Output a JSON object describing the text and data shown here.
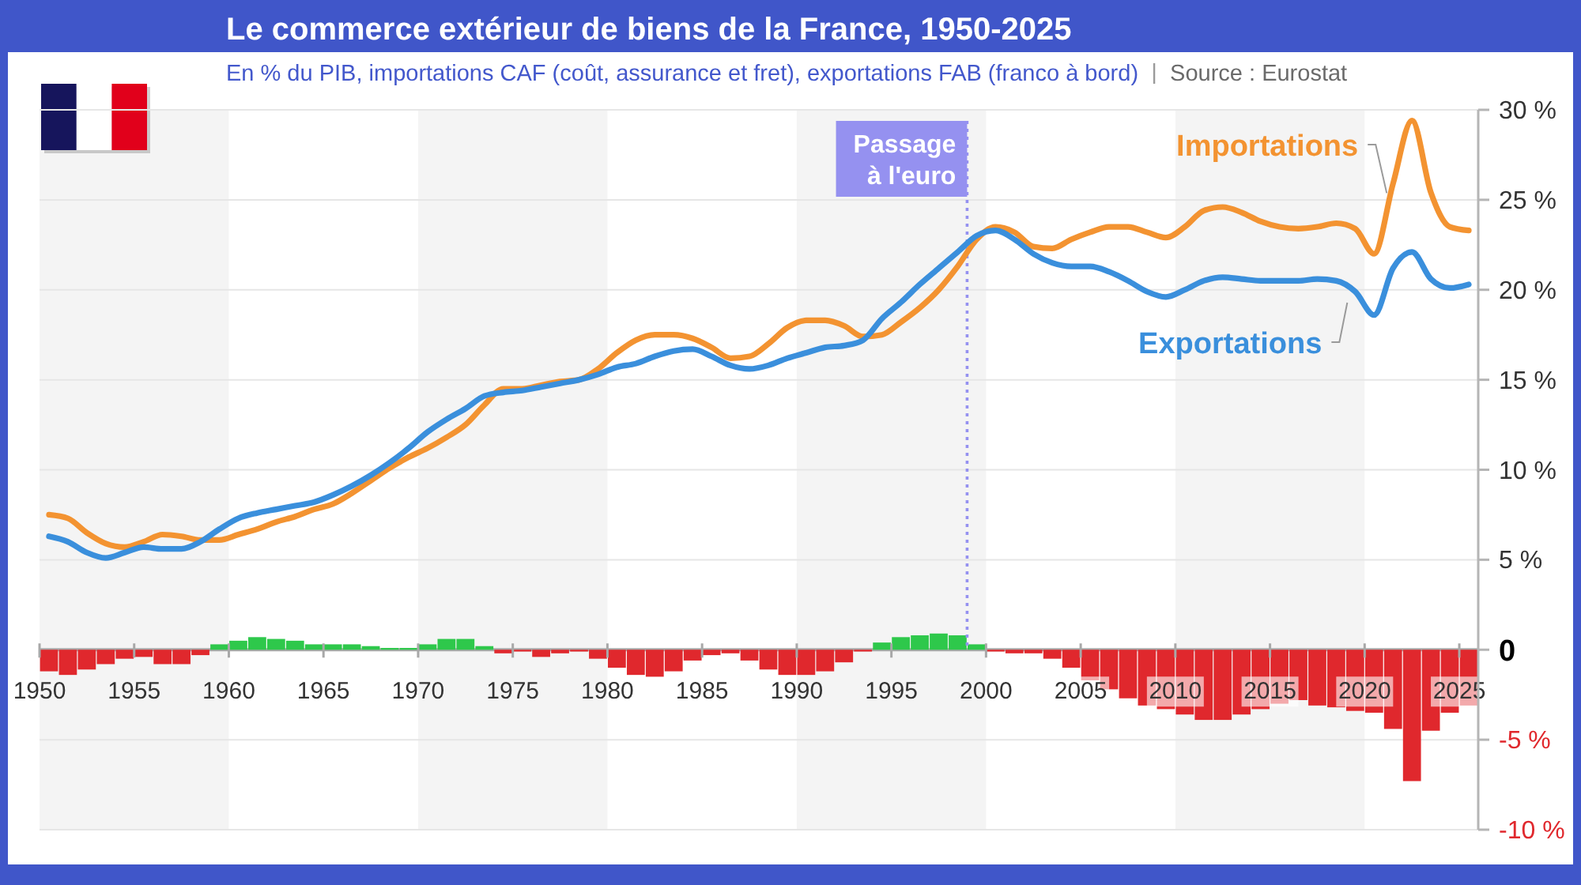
{
  "chart_data": {
    "type": "line",
    "title": "Le commerce extérieur de biens de la France, 1950-2025",
    "subtitle": "En % du PIB, importations CAF (coût, assurance et fret), exportations FAB (franco à bord)",
    "annotations": [
      "Source : Eurostat"
    ],
    "x": [
      1950.5,
      1951.5,
      1952.5,
      1953.5,
      1954.5,
      1955.5,
      1956.5,
      1957.5,
      1958.5,
      1959.5,
      1960.5,
      1961.5,
      1962.5,
      1963.5,
      1964.5,
      1965.5,
      1966.5,
      1967.5,
      1968.5,
      1969.5,
      1970.5,
      1971.5,
      1972.5,
      1973.5,
      1974.5,
      1975.5,
      1976.5,
      1977.5,
      1978.5,
      1979.5,
      1980.5,
      1981.5,
      1982.5,
      1983.5,
      1984.5,
      1985.5,
      1986.5,
      1987.5,
      1988.5,
      1989.5,
      1990.5,
      1991.5,
      1992.5,
      1993.5,
      1994.5,
      1995.5,
      1996.5,
      1997.5,
      1998.5,
      1999.5,
      2000.5,
      2001.5,
      2002.5,
      2003.5,
      2004.5,
      2005.5,
      2006.5,
      2007.5,
      2008.5,
      2009.5,
      2010.5,
      2011.5,
      2012.5,
      2013.5,
      2014.5,
      2015.5,
      2016.5,
      2017.5,
      2018.5,
      2019.5,
      2020.5,
      2021.5,
      2022.5,
      2023.5,
      2024.5,
      2025.5
    ],
    "xlim": [
      1950,
      2026
    ],
    "xticks": [
      1950,
      1955,
      1960,
      1965,
      1970,
      1975,
      1980,
      1985,
      1990,
      1995,
      2000,
      2005,
      2010,
      2015,
      2020,
      2025
    ],
    "ylim": [
      -10,
      30
    ],
    "yticks": [
      {
        "value": 30,
        "label": "30 %"
      },
      {
        "value": 25,
        "label": "25 %"
      },
      {
        "value": 20,
        "label": "20 %"
      },
      {
        "value": 15,
        "label": "15 %"
      },
      {
        "value": 10,
        "label": "10 %"
      },
      {
        "value": 5,
        "label": "5 %"
      },
      0,
      {
        "value": -5,
        "label": "-5 %"
      },
      {
        "value": -10,
        "label": "-10 %"
      }
    ],
    "grid": "y",
    "bands": [
      {
        "axis": "x",
        "from": 1950,
        "to": 1960,
        "color": "#f4f4f4"
      },
      {
        "axis": "x",
        "from": 1970,
        "to": 1980,
        "color": "#f4f4f4"
      },
      {
        "axis": "x",
        "from": 1990,
        "to": 2000,
        "color": "#f4f4f4"
      },
      {
        "axis": "x",
        "from": 2010,
        "to": 2020,
        "color": "#f4f4f4"
      }
    ],
    "ref_lines": [
      {
        "axis": "x",
        "value": 1999,
        "label": "Passage\nà l'euro",
        "color": "#9591f0",
        "line_style": "dotted"
      }
    ],
    "series": [
      {
        "type": "bar",
        "values": [
          -1.2,
          -1.4,
          -1.1,
          -0.8,
          -0.5,
          -0.4,
          -0.8,
          -0.8,
          -0.3,
          0.3,
          0.5,
          0.7,
          0.6,
          0.5,
          0.3,
          0.3,
          0.3,
          0.2,
          0.1,
          0.1,
          0.3,
          0.6,
          0.6,
          0.2,
          -0.2,
          -0.1,
          -0.4,
          -0.2,
          -0.1,
          -0.5,
          -1.0,
          -1.4,
          -1.5,
          -1.2,
          -0.6,
          -0.3,
          -0.2,
          -0.6,
          -1.1,
          -1.4,
          -1.4,
          -1.2,
          -0.7,
          -0.1,
          0.4,
          0.7,
          0.8,
          0.9,
          0.8,
          0.3,
          -0.1,
          -0.2,
          -0.2,
          -0.5,
          -1.0,
          -1.7,
          -2.2,
          -2.7,
          -3.1,
          -3.3,
          -3.6,
          -3.9,
          -3.9,
          -3.6,
          -3.3,
          -3.0,
          -2.8,
          -3.1,
          -3.2,
          -3.4,
          -3.5,
          -4.4,
          -7.3,
          -4.5,
          -3.5,
          -3.1
        ],
        "colors": [
          "#e0282d",
          "#e0282d",
          "#e0282d",
          "#e0282d",
          "#e0282d",
          "#e0282d",
          "#e0282d",
          "#e0282d",
          "#e0282d",
          "#2ec84b",
          "#2ec84b",
          "#2ec84b",
          "#2ec84b",
          "#2ec84b",
          "#2ec84b",
          "#2ec84b",
          "#2ec84b",
          "#2ec84b",
          "#2ec84b",
          "#2ec84b",
          "#2ec84b",
          "#2ec84b",
          "#2ec84b",
          "#2ec84b",
          "#e0282d",
          "#e0282d",
          "#e0282d",
          "#e0282d",
          "#e0282d",
          "#e0282d",
          "#e0282d",
          "#e0282d",
          "#e0282d",
          "#e0282d",
          "#e0282d",
          "#e0282d",
          "#e0282d",
          "#e0282d",
          "#e0282d",
          "#e0282d",
          "#e0282d",
          "#e0282d",
          "#e0282d",
          "#e0282d",
          "#2ec84b",
          "#2ec84b",
          "#2ec84b",
          "#2ec84b",
          "#2ec84b",
          "#2ec84b",
          "#e0282d",
          "#e0282d",
          "#e0282d",
          "#e0282d",
          "#e0282d",
          "#e0282d",
          "#e0282d",
          "#e0282d",
          "#e0282d",
          "#e0282d",
          "#e0282d",
          "#e0282d",
          "#e0282d",
          "#e0282d",
          "#e0282d",
          "#e0282d",
          "#e0282d",
          "#e0282d",
          "#e0282d",
          "#e0282d",
          "#e0282d",
          "#e0282d",
          "#e0282d",
          "#e0282d",
          "#e0282d",
          "#e0282d"
        ]
      },
      {
        "name": "Importations",
        "color": "#f39331",
        "values": [
          7.5,
          7.3,
          6.5,
          5.9,
          5.7,
          6.0,
          6.4,
          6.3,
          6.1,
          6.1,
          6.4,
          6.7,
          7.1,
          7.4,
          7.8,
          8.1,
          8.7,
          9.4,
          10.1,
          10.7,
          11.2,
          11.8,
          12.5,
          13.6,
          14.5,
          14.5,
          14.7,
          14.9,
          15.0,
          15.6,
          16.5,
          17.2,
          17.5,
          17.5,
          17.3,
          16.8,
          16.2,
          16.3,
          17.0,
          17.9,
          18.3,
          18.3,
          18.0,
          17.4,
          17.5,
          18.2,
          19.0,
          20.0,
          21.3,
          22.8,
          23.5,
          23.2,
          22.4,
          22.3,
          22.8,
          23.2,
          23.5,
          23.5,
          23.2,
          22.9,
          23.5,
          24.4,
          24.6,
          24.3,
          23.8,
          23.5,
          23.4,
          23.5,
          23.7,
          23.4,
          22.0,
          25.9,
          29.4,
          25.4,
          23.5,
          23.3
        ]
      },
      {
        "name": "Exportations",
        "color": "#3a8fdc",
        "values": [
          6.3,
          6.0,
          5.4,
          5.1,
          5.4,
          5.7,
          5.6,
          5.6,
          6.0,
          6.7,
          7.3,
          7.6,
          7.8,
          8.0,
          8.2,
          8.6,
          9.1,
          9.7,
          10.4,
          11.2,
          12.1,
          12.8,
          13.4,
          14.1,
          14.3,
          14.4,
          14.6,
          14.8,
          15.0,
          15.3,
          15.7,
          15.9,
          16.3,
          16.6,
          16.7,
          16.3,
          15.8,
          15.6,
          15.8,
          16.2,
          16.5,
          16.8,
          16.9,
          17.2,
          18.4,
          19.3,
          20.3,
          21.2,
          22.1,
          23.0,
          23.3,
          22.8,
          22.0,
          21.5,
          21.3,
          21.3,
          21.0,
          20.5,
          19.9,
          19.6,
          20.0,
          20.5,
          20.7,
          20.6,
          20.5,
          20.5,
          20.5,
          20.6,
          20.5,
          19.9,
          18.6,
          21.2,
          22.1,
          20.6,
          20.1,
          20.3
        ]
      }
    ]
  }
}
